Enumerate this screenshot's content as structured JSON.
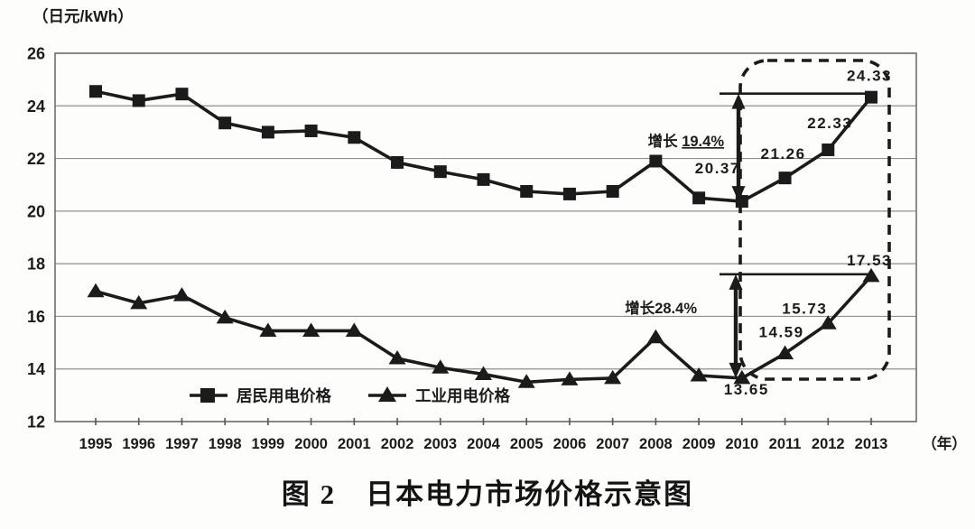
{
  "figure": {
    "caption": "图 2　日本电力市场价格示意图",
    "y_axis_unit": "（日元/kWh）",
    "x_axis_unit": "（年）"
  },
  "chart_data": {
    "type": "line",
    "title": "图 2　日本电力市场价格示意图",
    "ylabel": "日元/kWh",
    "xlabel": "年",
    "ylim": [
      12,
      26
    ],
    "y_ticks": [
      12,
      14,
      16,
      18,
      20,
      22,
      24,
      26
    ],
    "grid": true,
    "legend_position": "bottom-inside",
    "categories": [
      "1995",
      "1996",
      "1997",
      "1998",
      "1999",
      "2000",
      "2001",
      "2002",
      "2003",
      "2004",
      "2005",
      "2006",
      "2007",
      "2008",
      "2009",
      "2010",
      "2011",
      "2012",
      "2013"
    ],
    "series": [
      {
        "name": "居民用电价格",
        "marker": "square",
        "color": "#1b1b1b",
        "values": [
          24.55,
          24.2,
          24.45,
          23.35,
          23.0,
          23.05,
          22.8,
          21.85,
          21.5,
          21.2,
          20.75,
          20.65,
          20.75,
          21.9,
          20.5,
          20.37,
          21.26,
          22.33,
          24.33
        ]
      },
      {
        "name": "工业用电价格",
        "marker": "triangle",
        "color": "#1b1b1b",
        "values": [
          16.95,
          16.5,
          16.8,
          15.95,
          15.45,
          15.45,
          15.45,
          14.4,
          14.05,
          13.8,
          13.5,
          13.6,
          13.65,
          15.2,
          13.75,
          13.65,
          14.59,
          15.73,
          17.53
        ]
      }
    ],
    "point_labels": [
      {
        "series_index": 0,
        "year": "2010",
        "text": "20.37"
      },
      {
        "series_index": 0,
        "year": "2011",
        "text": "21.26"
      },
      {
        "series_index": 0,
        "year": "2012",
        "text": "22.33"
      },
      {
        "series_index": 0,
        "year": "2013",
        "text": "24.33"
      },
      {
        "series_index": 1,
        "year": "2010",
        "text": "13.65"
      },
      {
        "series_index": 1,
        "year": "2011",
        "text": "14.59"
      },
      {
        "series_index": 1,
        "year": "2012",
        "text": "15.73"
      },
      {
        "series_index": 1,
        "year": "2013",
        "text": "17.53"
      }
    ],
    "growth_annotations": [
      {
        "series": "居民用电价格",
        "prefix": "增长 ",
        "value": "19.4%",
        "underlined": true
      },
      {
        "series": "工业用电价格",
        "prefix": "增长",
        "value": "28.4%",
        "underlined": false
      }
    ],
    "highlight_box": {
      "from_year": "2010",
      "to_year": "2013",
      "style": "dashed-rounded-rect"
    }
  }
}
